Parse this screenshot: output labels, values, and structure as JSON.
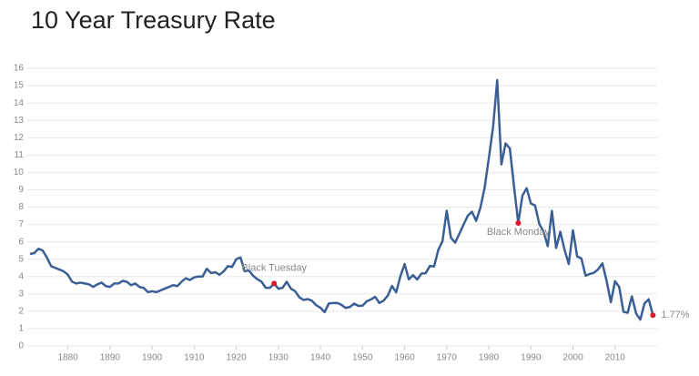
{
  "chart_data": {
    "type": "line",
    "title": "10 Year Treasury Rate",
    "x": [
      1871,
      1872,
      1873,
      1874,
      1875,
      1876,
      1877,
      1878,
      1879,
      1880,
      1881,
      1882,
      1883,
      1884,
      1885,
      1886,
      1887,
      1888,
      1889,
      1890,
      1891,
      1892,
      1893,
      1894,
      1895,
      1896,
      1897,
      1898,
      1899,
      1900,
      1901,
      1902,
      1903,
      1904,
      1905,
      1906,
      1907,
      1908,
      1909,
      1910,
      1911,
      1912,
      1913,
      1914,
      1915,
      1916,
      1917,
      1918,
      1919,
      1920,
      1921,
      1922,
      1923,
      1924,
      1925,
      1926,
      1927,
      1928,
      1929,
      1930,
      1931,
      1932,
      1933,
      1934,
      1935,
      1936,
      1937,
      1938,
      1939,
      1940,
      1941,
      1942,
      1943,
      1944,
      1945,
      1946,
      1947,
      1948,
      1949,
      1950,
      1951,
      1952,
      1953,
      1954,
      1955,
      1956,
      1957,
      1958,
      1959,
      1960,
      1961,
      1962,
      1963,
      1964,
      1965,
      1966,
      1967,
      1968,
      1969,
      1970,
      1971,
      1972,
      1973,
      1974,
      1975,
      1976,
      1977,
      1978,
      1979,
      1980,
      1981,
      1982,
      1983,
      1984,
      1985,
      1986,
      1987,
      1988,
      1989,
      1990,
      1991,
      1992,
      1993,
      1994,
      1995,
      1996,
      1997,
      1998,
      1999,
      2000,
      2001,
      2002,
      2003,
      2004,
      2005,
      2006,
      2007,
      2008,
      2009,
      2010,
      2011,
      2012,
      2013,
      2014,
      2015,
      2016,
      2017,
      2018,
      2019
    ],
    "series": [
      {
        "name": "10 Year Treasury Rate",
        "color": "#3a5f95",
        "values": [
          5.3,
          5.35,
          5.6,
          5.5,
          5.1,
          4.6,
          4.5,
          4.4,
          4.3,
          4.1,
          3.7,
          3.6,
          3.65,
          3.6,
          3.55,
          3.4,
          3.55,
          3.65,
          3.45,
          3.4,
          3.6,
          3.6,
          3.75,
          3.7,
          3.5,
          3.6,
          3.4,
          3.35,
          3.1,
          3.15,
          3.1,
          3.2,
          3.3,
          3.4,
          3.5,
          3.45,
          3.7,
          3.9,
          3.8,
          3.95,
          4.0,
          4.0,
          4.45,
          4.2,
          4.25,
          4.1,
          4.3,
          4.6,
          4.55,
          5.0,
          5.1,
          4.3,
          4.35,
          4.05,
          3.85,
          3.7,
          3.35,
          3.35,
          3.6,
          3.3,
          3.35,
          3.7,
          3.3,
          3.15,
          2.8,
          2.65,
          2.7,
          2.6,
          2.35,
          2.2,
          1.95,
          2.45,
          2.47,
          2.48,
          2.37,
          2.19,
          2.25,
          2.44,
          2.31,
          2.32,
          2.57,
          2.68,
          2.83,
          2.48,
          2.61,
          2.9,
          3.46,
          3.09,
          4.02,
          4.72,
          3.84,
          4.08,
          3.83,
          4.17,
          4.19,
          4.61,
          4.58,
          5.53,
          6.04,
          7.79,
          6.24,
          5.95,
          6.46,
          6.99,
          7.5,
          7.74,
          7.21,
          7.96,
          9.1,
          10.8,
          12.57,
          15.32,
          10.46,
          11.67,
          11.38,
          9.19,
          7.08,
          8.67,
          9.09,
          8.21,
          8.09,
          7.03,
          6.6,
          5.75,
          7.78,
          5.65,
          6.58,
          5.54,
          4.72,
          6.66,
          5.16,
          5.04,
          4.05,
          4.15,
          4.22,
          4.42,
          4.76,
          3.74,
          2.52,
          3.73,
          3.39,
          1.97,
          1.91,
          2.86,
          1.88,
          1.52,
          2.45,
          2.69,
          1.77
        ]
      }
    ],
    "annotations": [
      {
        "label": "Black Tuesday",
        "x": 1929,
        "y": 3.6
      },
      {
        "label": "Black Monday",
        "x": 1987,
        "y": 7.08
      },
      {
        "label": "1.77%",
        "x": 2019,
        "y": 1.77
      }
    ],
    "annotation_color": "#e0192f",
    "xlim": [
      1871,
      2020
    ],
    "xticks": [
      1880,
      1890,
      1900,
      1910,
      1920,
      1930,
      1940,
      1950,
      1960,
      1970,
      1980,
      1990,
      2000,
      2010
    ],
    "ylim": [
      0,
      16
    ],
    "yticks": [
      0,
      1,
      2,
      3,
      4,
      5,
      6,
      7,
      8,
      9,
      10,
      11,
      12,
      13,
      14,
      15,
      16
    ],
    "grid": true
  }
}
